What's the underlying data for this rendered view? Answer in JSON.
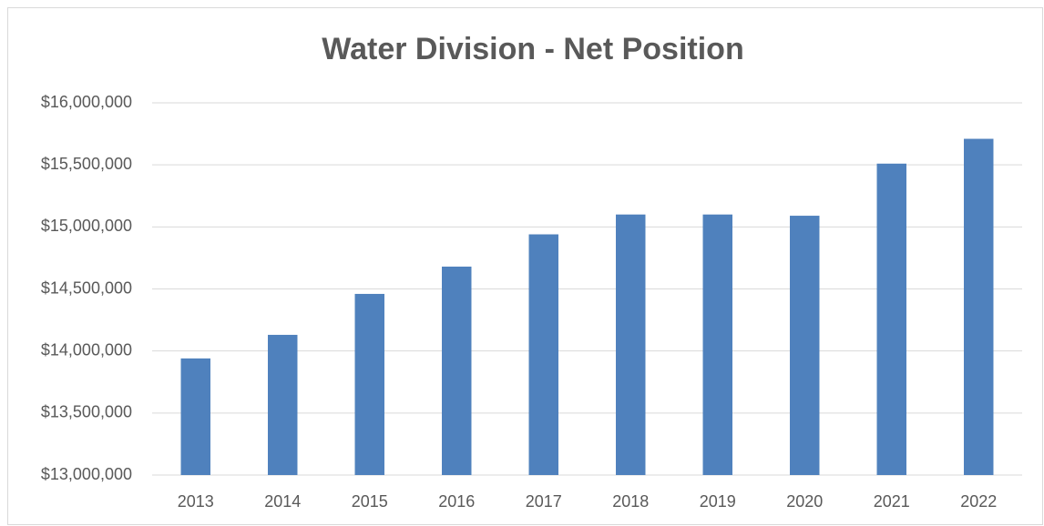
{
  "chart_data": {
    "type": "bar",
    "title": "Water Division - Net Position",
    "categories": [
      "2013",
      "2014",
      "2015",
      "2016",
      "2017",
      "2018",
      "2019",
      "2020",
      "2021",
      "2022"
    ],
    "values": [
      13940000,
      14130000,
      14460000,
      14680000,
      14940000,
      15100000,
      15100000,
      15090000,
      15510000,
      15710000
    ],
    "color": "#4f81bd",
    "ylim": [
      13000000,
      16000000
    ],
    "yticks": [
      {
        "value": 13000000,
        "label": "$13,000,000"
      },
      {
        "value": 13500000,
        "label": "$13,500,000"
      },
      {
        "value": 14000000,
        "label": "$14,000,000"
      },
      {
        "value": 14500000,
        "label": "$14,500,000"
      },
      {
        "value": 15000000,
        "label": "$15,000,000"
      },
      {
        "value": 15500000,
        "label": "$15,500,000"
      },
      {
        "value": 16000000,
        "label": "$16,000,000"
      }
    ],
    "grid": true
  }
}
